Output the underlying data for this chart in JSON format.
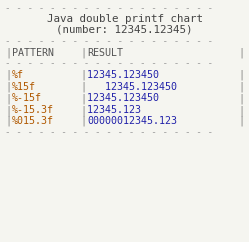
{
  "title_line1": "Java double printf chart",
  "title_line2": "(number: 12345.12345)",
  "dash_line": "- - - - - - - - - - - - - - - - - -",
  "header_pat": "PATTERN",
  "header_res": "RESULT",
  "rows": [
    {
      "pattern": "%f",
      "result": "12345.123450",
      "result_pad": "12345.123450   "
    },
    {
      "pattern": "%15f",
      "result": "   12345.123450",
      "result_pad": "   12345.123450"
    },
    {
      "pattern": "%-15f",
      "result": "12345.123450",
      "result_pad": "12345.123450   "
    },
    {
      "pattern": "%-15.3f",
      "result": "12345.123",
      "result_pad": "12345.123      "
    },
    {
      "pattern": "%015.3f",
      "result": "00000012345.123",
      "result_pad": "00000012345.123"
    }
  ],
  "bg_color": "#f5f5f0",
  "dash_color": "#999999",
  "title_color": "#444444",
  "header_color": "#555555",
  "pipe_color": "#888888",
  "pattern_color": "#b05800",
  "result_color": "#2222aa",
  "font_size": 7.2,
  "title_font_size": 7.8,
  "fig_width": 2.49,
  "fig_height": 2.42,
  "dpi": 100
}
